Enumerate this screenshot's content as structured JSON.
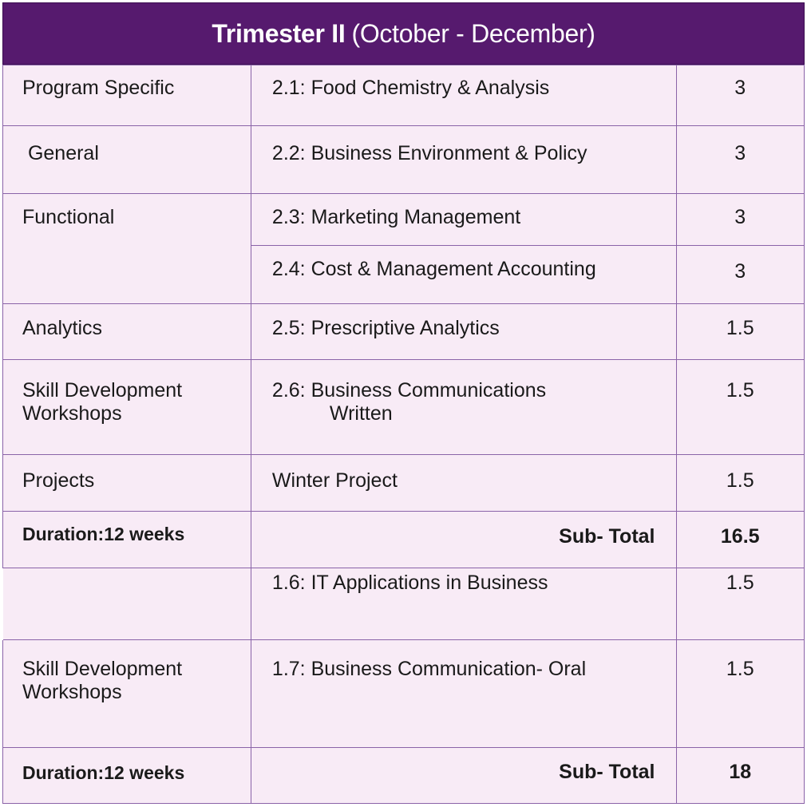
{
  "header": {
    "title_bold": "Trimester  II",
    "title_rest": "(October - December)"
  },
  "rows": [
    {
      "category": "Program Specific",
      "course": "2.1: Food Chemistry & Analysis",
      "credits": "3"
    },
    {
      "category": " General",
      "course": "2.2: Business Environment & Policy",
      "credits": "3"
    },
    {
      "category": "Functional",
      "course": "2.3: Marketing Management",
      "credits": "3"
    },
    {
      "category": "",
      "course": "2.4: Cost & Management Accounting",
      "credits": "3"
    },
    {
      "category": "Analytics",
      "course": "2.5: Prescriptive Analytics",
      "credits": "1.5"
    },
    {
      "category_line1": "Skill Development",
      "category_line2": "Workshops",
      "course_line1": "2.6: Business Communications",
      "course_line2": "Written",
      "credits": "1.5"
    },
    {
      "category": "Projects",
      "course": "Winter Project",
      "credits": "1.5"
    }
  ],
  "subtotal1": {
    "duration": "Duration:12 weeks",
    "label": "Sub- Total",
    "value": "16.5"
  },
  "extra_rows": [
    {
      "course": "1.6: IT Applications in Business",
      "credits": "1.5"
    },
    {
      "category_line1": "Skill Development",
      "category_line2": "Workshops",
      "course": "1.7: Business Communication- Oral",
      "credits": "1.5"
    }
  ],
  "subtotal2": {
    "duration": "Duration:12 weeks",
    "label": "Sub- Total",
    "value": "18"
  }
}
